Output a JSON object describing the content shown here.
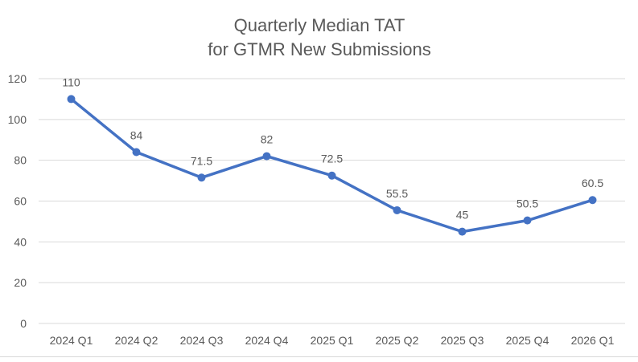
{
  "chart_data": {
    "type": "line",
    "title": [
      "Quarterly Median TAT",
      "for GTMR New Submissions"
    ],
    "categories": [
      "2024 Q1",
      "2024 Q2",
      "2024 Q3",
      "2024 Q4",
      "2025 Q1",
      "2025 Q2",
      "2025 Q3",
      "2025 Q4",
      "2026 Q1"
    ],
    "series": [
      {
        "name": "Median TAT",
        "values": [
          110,
          84,
          71.5,
          82,
          72.5,
          55.5,
          45,
          50.5,
          60.5
        ]
      }
    ],
    "data_labels": [
      "110",
      "84",
      "71.5",
      "82",
      "72.5",
      "55.5",
      "45",
      "50.5",
      "60.5"
    ],
    "xlabel": "",
    "ylabel": "",
    "ylim": [
      0,
      120
    ],
    "yticks": [
      0,
      20,
      40,
      60,
      80,
      100,
      120
    ],
    "grid": true,
    "legend": "none",
    "colors": {
      "line": "#4472C4",
      "grid": "#d9d9d9",
      "text": "#595959"
    }
  }
}
